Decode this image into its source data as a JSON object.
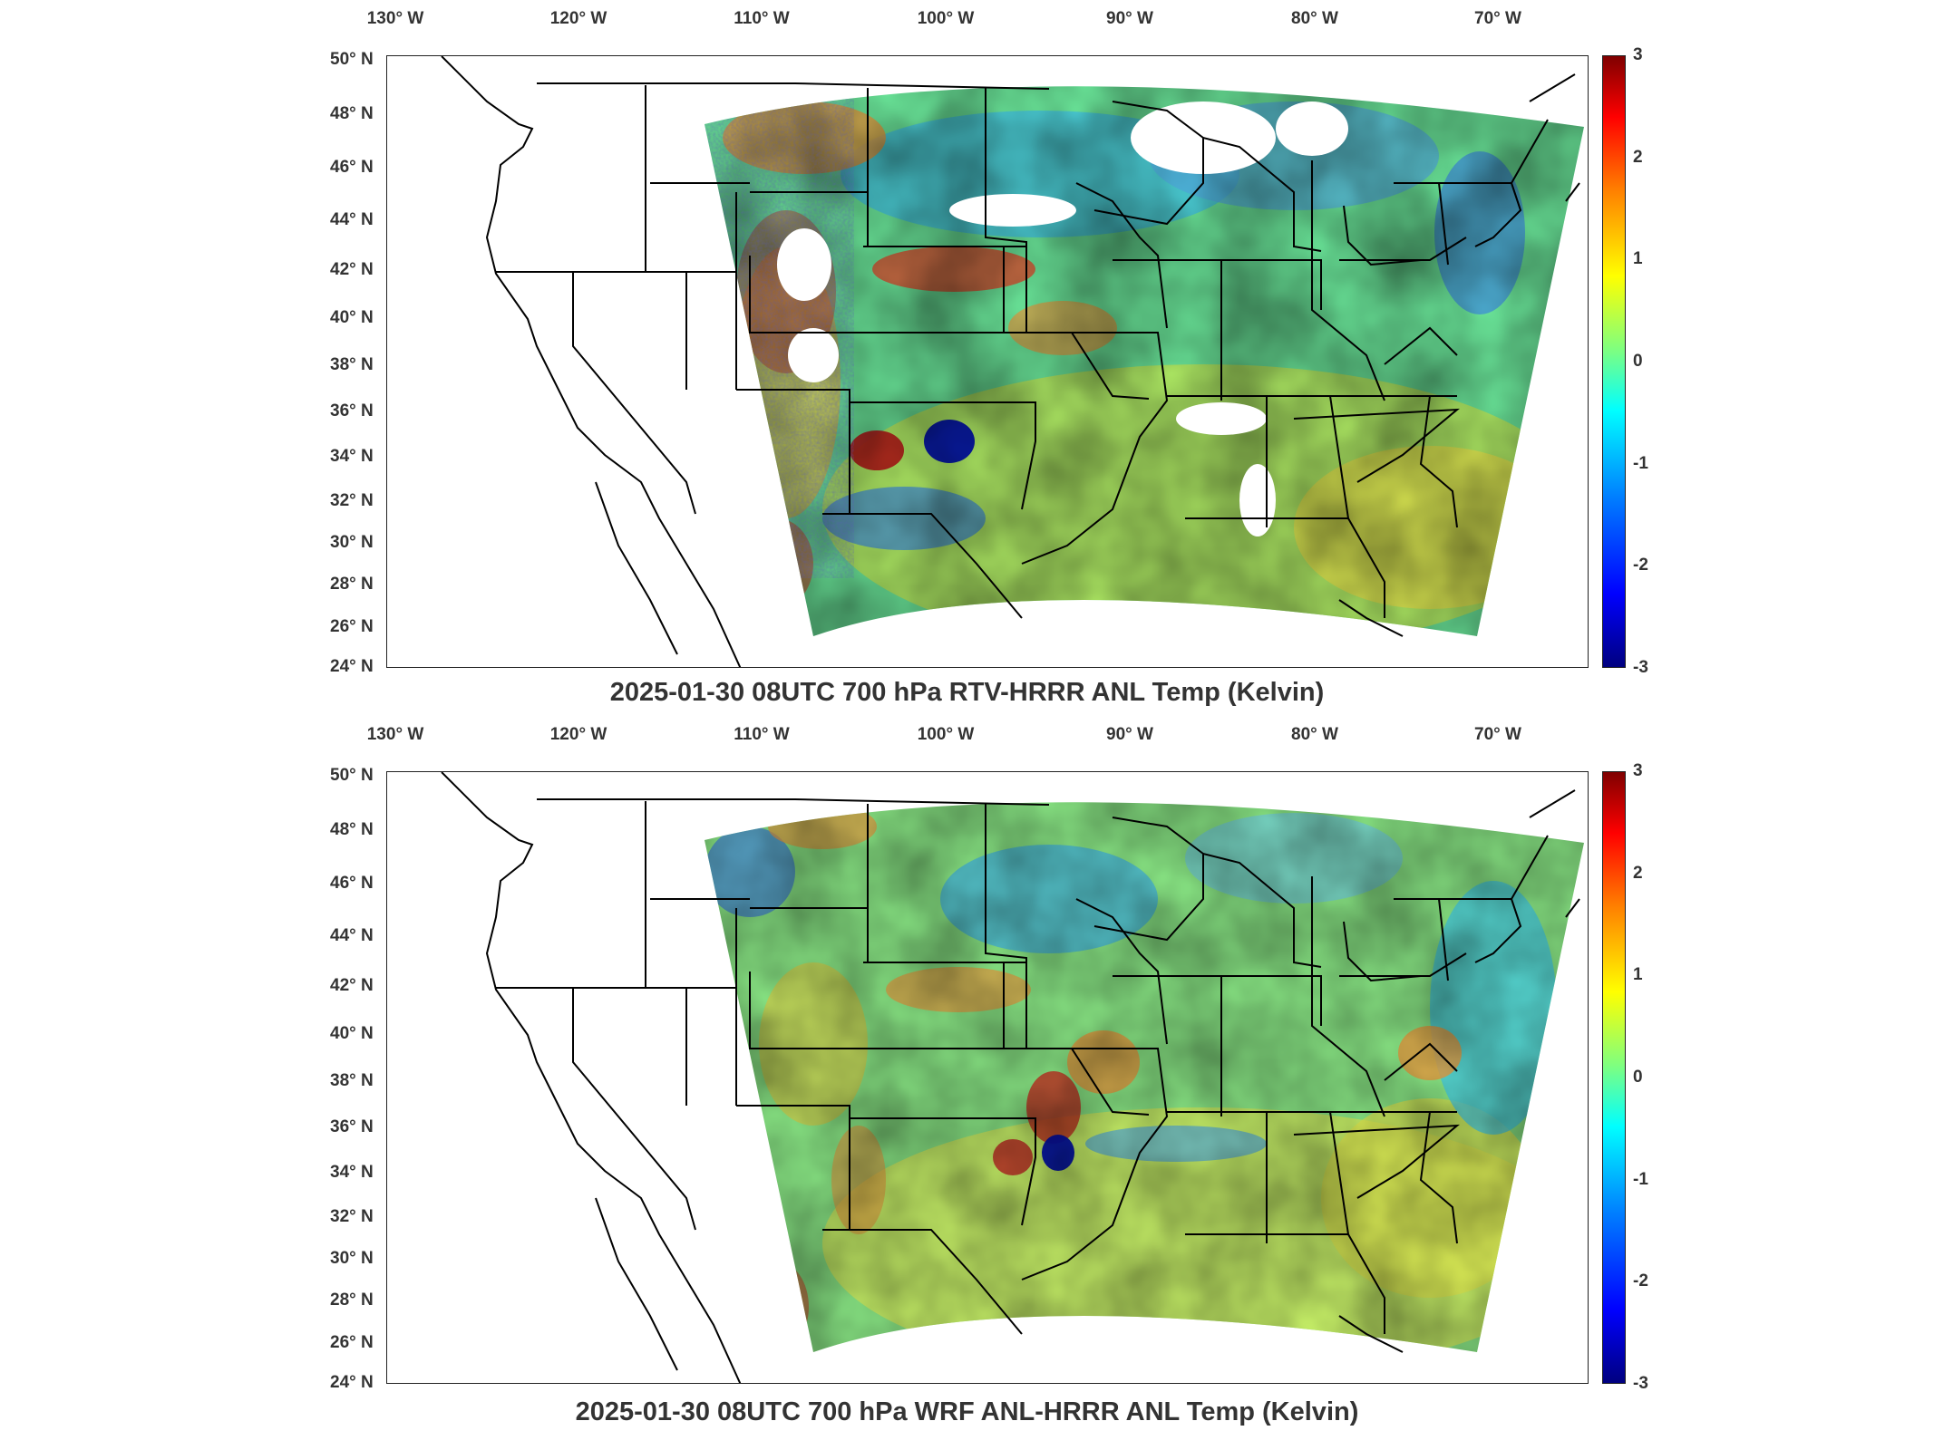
{
  "panels": [
    {
      "id": "top",
      "title": "2025-01-30 08UTC 700 hPa RTV-HRRR ANL Temp (Kelvin)",
      "lon_ticks": [
        "130° W",
        "120° W",
        "110° W",
        "100° W",
        "90° W",
        "80° W",
        "70° W"
      ],
      "lat_ticks": [
        "50° N",
        "48° N",
        "46° N",
        "44° N",
        "42° N",
        "40° N",
        "38° N",
        "36° N",
        "34° N",
        "32° N",
        "30° N",
        "28° N",
        "26° N",
        "24° N"
      ],
      "colorbar_ticks": [
        "3",
        "2",
        "1",
        "0",
        "-1",
        "-2",
        "-3"
      ],
      "colorbar_range": [
        -3,
        3
      ],
      "colormap": "jet"
    },
    {
      "id": "bottom",
      "title": "2025-01-30 08UTC 700 hPa WRF ANL-HRRR ANL Temp (Kelvin)",
      "lon_ticks": [
        "130° W",
        "120° W",
        "110° W",
        "100° W",
        "90° W",
        "80° W",
        "70° W"
      ],
      "lat_ticks": [
        "50° N",
        "48° N",
        "46° N",
        "44° N",
        "42° N",
        "40° N",
        "38° N",
        "36° N",
        "34° N",
        "32° N",
        "30° N",
        "28° N",
        "26° N",
        "24° N"
      ],
      "colorbar_ticks": [
        "3",
        "2",
        "1",
        "0",
        "-1",
        "-2",
        "-3"
      ],
      "colorbar_range": [
        -3,
        3
      ],
      "colormap": "jet"
    }
  ],
  "colors": {
    "frame": "#222222",
    "land_outline": "#000000",
    "background": "#ffffff"
  }
}
